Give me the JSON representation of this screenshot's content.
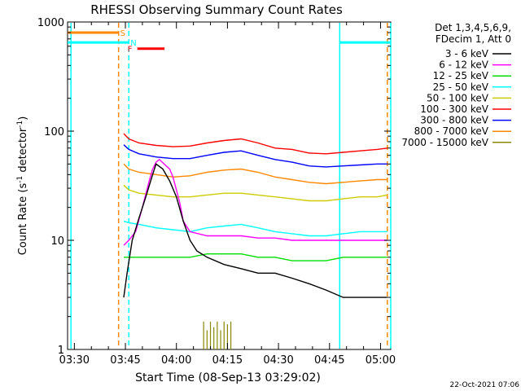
{
  "chart_data": {
    "type": "line",
    "title": "RHESSI Observing Summary Count Rates",
    "xlabel": "Start Time (08-Sep-13 03:29:02)",
    "ylabel": "Count Rate (s⁻¹ detector⁻¹)",
    "ylabel_parts": {
      "main": "Count Rate (s",
      "sup1": "-1",
      "mid": " detector",
      "sup2": "-1",
      "end": ")"
    },
    "timestamp": "22-Oct-2021 07:06",
    "y_scale": "log",
    "ylim": [
      1,
      1000
    ],
    "y_ticks": [
      {
        "v": 1,
        "label": "1"
      },
      {
        "v": 10,
        "label": "10"
      },
      {
        "v": 100,
        "label": "100"
      },
      {
        "v": 1000,
        "label": "1000"
      }
    ],
    "xlim_min": [
      -1,
      94
    ],
    "x_ticks": [
      {
        "v": 1,
        "label": "03:30"
      },
      {
        "v": 16,
        "label": "03:45"
      },
      {
        "v": 31,
        "label": "04:00"
      },
      {
        "v": 46,
        "label": "04:15"
      },
      {
        "v": 61,
        "label": "04:30"
      },
      {
        "v": 76,
        "label": "04:45"
      },
      {
        "v": 91,
        "label": "05:00"
      }
    ],
    "legend_header": [
      "Det 1,3,4,5,6,9,",
      "FDecim 1, Att 0"
    ],
    "legend": [
      {
        "label": "3 - 6 keV",
        "color": "#000000"
      },
      {
        "label": "6 - 12 keV",
        "color": "#ff00ff"
      },
      {
        "label": "12 - 25 keV",
        "color": "#00dd00"
      },
      {
        "label": "25 - 50 keV",
        "color": "#00ffff"
      },
      {
        "label": "50 - 100 keV",
        "color": "#cccc00"
      },
      {
        "label": "100 - 300 keV",
        "color": "#ff0000"
      },
      {
        "label": "300 - 800 keV",
        "color": "#0000ff"
      },
      {
        "label": "800 - 7000 keV",
        "color": "#ff8800"
      },
      {
        "label": "7000 - 15000 keV",
        "color": "#888800"
      }
    ],
    "series": [
      {
        "color": "#ff0000",
        "x": [
          15.5,
          17,
          20,
          25,
          30,
          35,
          40,
          45,
          50,
          55,
          60,
          65,
          70,
          75,
          80,
          85,
          90,
          93
        ],
        "y": [
          95,
          85,
          78,
          74,
          72,
          73,
          78,
          82,
          85,
          78,
          70,
          68,
          63,
          62,
          64,
          66,
          68,
          70
        ]
      },
      {
        "color": "#0000ff",
        "x": [
          15.5,
          17,
          20,
          25,
          30,
          35,
          40,
          45,
          50,
          55,
          60,
          65,
          70,
          75,
          80,
          85,
          90,
          93
        ],
        "y": [
          75,
          68,
          62,
          58,
          56,
          56,
          60,
          64,
          66,
          60,
          55,
          52,
          48,
          47,
          48,
          49,
          50,
          50
        ]
      },
      {
        "color": "#ff8800",
        "x": [
          15.5,
          17,
          20,
          25,
          30,
          35,
          40,
          45,
          50,
          55,
          60,
          65,
          70,
          75,
          80,
          85,
          90,
          93
        ],
        "y": [
          50,
          45,
          42,
          40,
          38,
          39,
          42,
          44,
          45,
          42,
          38,
          36,
          34,
          33,
          34,
          35,
          36,
          36
        ]
      },
      {
        "color": "#cccc00",
        "x": [
          15.5,
          17,
          20,
          25,
          30,
          35,
          40,
          45,
          50,
          55,
          60,
          65,
          70,
          75,
          80,
          85,
          90,
          93
        ],
        "y": [
          32,
          29,
          27,
          26,
          25,
          25,
          26,
          27,
          27,
          26,
          25,
          24,
          23,
          23,
          24,
          25,
          25,
          26
        ]
      },
      {
        "color": "#00ffff",
        "x": [
          15.5,
          17,
          20,
          25,
          30,
          35,
          40,
          45,
          50,
          55,
          60,
          65,
          70,
          75,
          80,
          85,
          90,
          93
        ],
        "y": [
          15,
          14.5,
          14,
          13,
          12.5,
          12,
          13,
          13.5,
          14,
          13,
          12,
          11.5,
          11,
          11,
          11.5,
          12,
          12,
          12
        ]
      },
      {
        "color": "#ff00ff",
        "x": [
          15.5,
          17,
          19,
          21,
          23,
          24,
          25,
          26,
          28,
          29,
          30,
          32,
          33,
          35,
          40,
          45,
          50,
          55,
          60,
          65,
          70,
          75,
          80,
          85,
          90,
          93
        ],
        "y": [
          9,
          10,
          12,
          20,
          35,
          45,
          52,
          55,
          48,
          45,
          38,
          22,
          15,
          12,
          11,
          11,
          11,
          10.5,
          10.5,
          10,
          10,
          10,
          10,
          10,
          10,
          10
        ]
      },
      {
        "color": "#00dd00",
        "x": [
          15.5,
          17,
          20,
          25,
          30,
          35,
          40,
          45,
          50,
          55,
          60,
          65,
          70,
          75,
          80,
          85,
          90,
          93
        ],
        "y": [
          7,
          7,
          7,
          7,
          7,
          7,
          7.5,
          7.5,
          7.5,
          7,
          7,
          6.5,
          6.5,
          6.5,
          7,
          7,
          7,
          7
        ]
      },
      {
        "color": "#000000",
        "x": [
          15.5,
          16.5,
          18,
          20,
          22,
          24,
          25,
          27,
          29,
          31,
          33,
          35,
          37,
          40,
          45,
          50,
          55,
          60,
          65,
          70,
          75,
          80,
          85,
          90,
          93
        ],
        "y": [
          3,
          5,
          10,
          16,
          25,
          40,
          50,
          45,
          35,
          25,
          15,
          10,
          8,
          7,
          6,
          5.5,
          5,
          5,
          4.5,
          4,
          3.5,
          3,
          3,
          3,
          3
        ]
      },
      {
        "color": "#888800",
        "type": "spikes",
        "x": [
          39,
          40,
          41,
          42,
          43,
          44,
          45,
          46,
          47
        ],
        "y": [
          1.8,
          1.5,
          1.8,
          1.6,
          1.8,
          1.5,
          1.8,
          1.7,
          1.8
        ]
      }
    ],
    "segments": [
      {
        "label": "S",
        "color": "#ff8800",
        "x0": -1,
        "x1": 14,
        "y": 800
      },
      {
        "label": "N",
        "color": "#00ffff",
        "x0": -1,
        "x1": 17,
        "y": 650
      },
      {
        "label": "F",
        "color": "#ff0000",
        "x0": 19.5,
        "x1": 27.5,
        "y": 570
      },
      {
        "label": "",
        "color": "#00ffff",
        "x0": 79,
        "x1": 94,
        "y": 650
      }
    ],
    "vlines": [
      {
        "x": 0,
        "color": "#00ffff",
        "dash": false
      },
      {
        "x": 14,
        "color": "#ff8800",
        "dash": true
      },
      {
        "x": 17,
        "color": "#00ffff",
        "dash": true
      },
      {
        "x": 79,
        "color": "#00ffff",
        "dash": false
      },
      {
        "x": 93,
        "color": "#ff8800",
        "dash": true
      },
      {
        "x": 94,
        "color": "#00ffff",
        "dash": false
      }
    ]
  }
}
